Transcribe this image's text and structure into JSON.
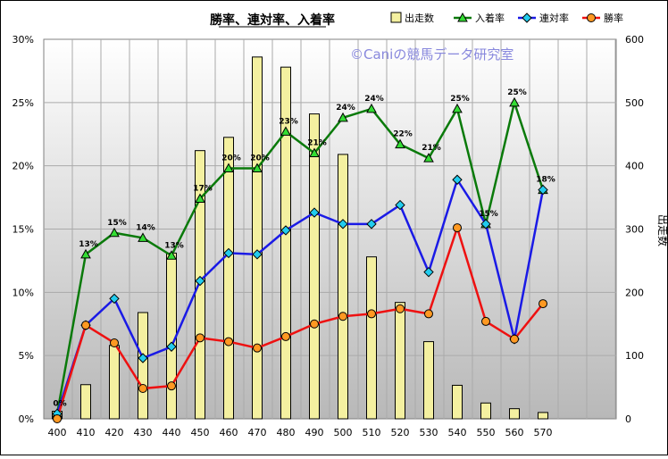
{
  "chart_data": {
    "type": "bar+line",
    "title": "勝率、連対率、入着率",
    "watermark": "©Caniの競馬データ研究室",
    "categories": [
      "400",
      "410",
      "420",
      "430",
      "440",
      "450",
      "460",
      "470",
      "480",
      "490",
      "500",
      "510",
      "520",
      "530",
      "540",
      "550",
      "560",
      "570"
    ],
    "left_axis": {
      "ylim": [
        0,
        30
      ],
      "ticks": [
        "0%",
        "5%",
        "10%",
        "15%",
        "20%",
        "25%",
        "30%"
      ]
    },
    "right_axis": {
      "label": "出走数",
      "ylim": [
        0,
        600
      ],
      "ticks": [
        "0",
        "100",
        "200",
        "300",
        "400",
        "500",
        "600"
      ]
    },
    "series": [
      {
        "name": "出走数",
        "kind": "bar",
        "axis": "right",
        "color": "#f4f0a0",
        "values": [
          12,
          54,
          116,
          168,
          262,
          424,
          445,
          572,
          556,
          482,
          418,
          256,
          184,
          122,
          53,
          25,
          16,
          10
        ]
      },
      {
        "name": "入着率",
        "kind": "line",
        "axis": "left",
        "color": "#0a7a0a",
        "marker": "triangle",
        "marker_color": "#33dd33",
        "values": [
          0.4,
          13.0,
          14.7,
          14.3,
          12.9,
          17.4,
          19.8,
          19.8,
          22.7,
          21.0,
          23.8,
          24.5,
          21.7,
          20.6,
          24.5,
          15.4,
          25.0,
          18.1
        ],
        "labels": [
          "0%",
          "13%",
          "15%",
          "14%",
          "13%",
          "17%",
          "20%",
          "20%",
          "23%",
          "21%",
          "24%",
          "24%",
          "22%",
          "21%",
          "25%",
          "15%",
          "25%",
          "18%"
        ]
      },
      {
        "name": "連対率",
        "kind": "line",
        "axis": "left",
        "color": "#1a1ae6",
        "marker": "diamond",
        "marker_color": "#22ccee",
        "values": [
          0.4,
          7.4,
          9.5,
          4.8,
          5.7,
          10.9,
          13.1,
          13.0,
          14.9,
          16.3,
          15.4,
          15.4,
          16.9,
          11.6,
          18.9,
          15.4,
          6.3,
          18.1
        ]
      },
      {
        "name": "勝率",
        "kind": "line",
        "axis": "left",
        "color": "#ee1111",
        "marker": "circle",
        "marker_color": "#ff9922",
        "values": [
          0.0,
          7.4,
          6.0,
          2.4,
          2.6,
          6.4,
          6.1,
          5.6,
          6.5,
          7.5,
          8.1,
          8.3,
          8.7,
          8.3,
          15.1,
          7.7,
          6.3,
          9.1
        ]
      }
    ],
    "legend_position": "top-right",
    "grid": true
  }
}
